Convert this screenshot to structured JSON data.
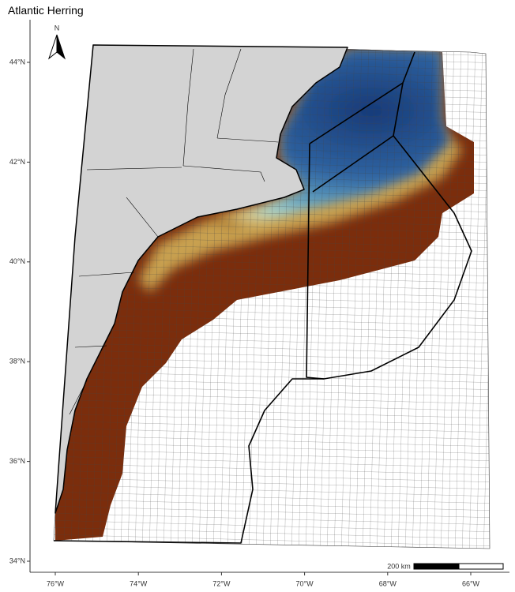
{
  "title": "Atlantic Herring",
  "north_label": "N",
  "scale_bar": {
    "label": "200 km"
  },
  "x_axis": {
    "ticks": [
      {
        "value": -76,
        "label": "76°W"
      },
      {
        "value": -74,
        "label": "74°W"
      },
      {
        "value": -72,
        "label": "72°W"
      },
      {
        "value": -70,
        "label": "70°W"
      },
      {
        "value": -68,
        "label": "68°W"
      },
      {
        "value": -66,
        "label": "66°W"
      }
    ]
  },
  "y_axis": {
    "ticks": [
      {
        "value": 34,
        "label": "34°N"
      },
      {
        "value": 36,
        "label": "36°N"
      },
      {
        "value": 38,
        "label": "38°N"
      },
      {
        "value": 40,
        "label": "40°N"
      },
      {
        "value": 42,
        "label": "42°N"
      },
      {
        "value": 44,
        "label": "44°N"
      }
    ]
  }
}
